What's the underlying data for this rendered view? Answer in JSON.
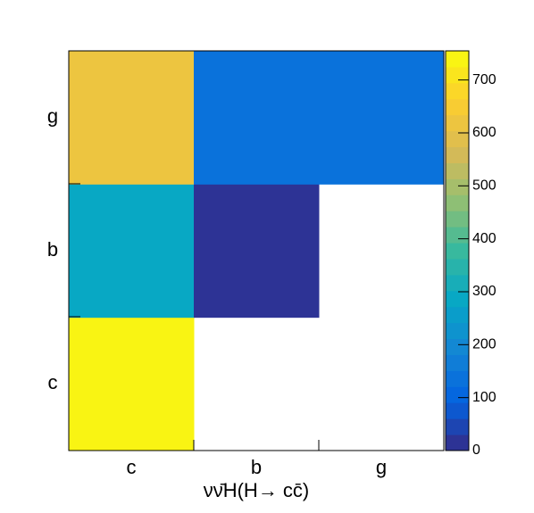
{
  "chart_data": {
    "type": "heatmap",
    "x_label": "νν̄H(H→ cc̄)",
    "x_categories": [
      "c",
      "b",
      "g"
    ],
    "y_categories": [
      "c",
      "b",
      "g"
    ],
    "values": [
      [
        745,
        null,
        null
      ],
      [
        290,
        20,
        null
      ],
      [
        615,
        125,
        125
      ]
    ],
    "zlim": [
      0,
      755
    ],
    "zticks": [
      0,
      100,
      200,
      300,
      400,
      500,
      600,
      700
    ],
    "colorscale": [
      "#352a87",
      "#0363e1",
      "#1485d4",
      "#06a7c6",
      "#38b99e",
      "#92bf73",
      "#d9ba56",
      "#fcce2e",
      "#f9fb0e"
    ]
  }
}
